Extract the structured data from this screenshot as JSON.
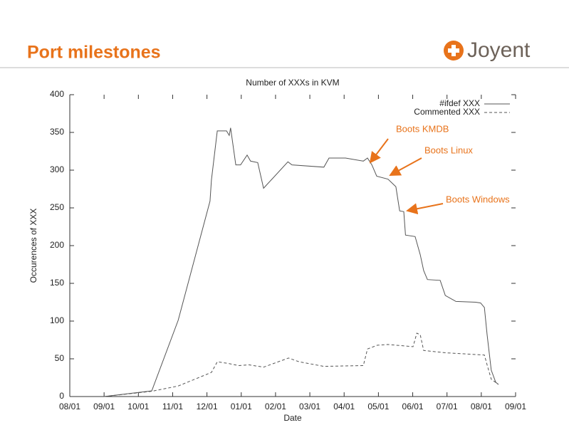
{
  "slide": {
    "title": "Port milestones",
    "logo": "Joyent"
  },
  "chart_data": {
    "type": "line",
    "title": "Number of XXXs in KVM",
    "x_label": "Date",
    "y_label": "Occurences of XXX",
    "xlim": [
      0,
      13
    ],
    "xticks": [
      {
        "value": 0,
        "label": "08/01"
      },
      {
        "value": 1,
        "label": "09/01"
      },
      {
        "value": 2,
        "label": "10/01"
      },
      {
        "value": 3,
        "label": "11/01"
      },
      {
        "value": 4,
        "label": "12/01"
      },
      {
        "value": 5,
        "label": "01/01"
      },
      {
        "value": 6,
        "label": "02/01"
      },
      {
        "value": 7,
        "label": "03/01"
      },
      {
        "value": 8,
        "label": "04/01"
      },
      {
        "value": 9,
        "label": "05/01"
      },
      {
        "value": 10,
        "label": "06/01"
      },
      {
        "value": 11,
        "label": "07/01"
      },
      {
        "value": 12,
        "label": "08/01"
      },
      {
        "value": 13,
        "label": "09/01"
      }
    ],
    "ylim": [
      0,
      400
    ],
    "yticks": [
      0,
      50,
      100,
      150,
      200,
      250,
      300,
      350,
      400
    ],
    "legend": "top-right",
    "series": [
      {
        "name": "#ifdef XXX",
        "color": "#555555",
        "dashed": false,
        "x": [
          1.0,
          2.39,
          3.16,
          4.09,
          4.13,
          4.3,
          4.57,
          4.65,
          4.69,
          4.84,
          4.98,
          5.17,
          5.27,
          5.48,
          5.65,
          6.36,
          6.48,
          7.41,
          7.56,
          8.04,
          8.56,
          8.68,
          8.81,
          8.95,
          9.28,
          9.51,
          9.62,
          9.74,
          9.79,
          10.07,
          10.22,
          10.32,
          10.43,
          10.8,
          10.95,
          11.26,
          11.84,
          11.98,
          12.09,
          12.17,
          12.29,
          12.42,
          12.5
        ],
        "values": [
          0,
          7.5,
          101,
          259,
          287,
          352,
          352,
          346,
          356,
          307,
          307,
          320,
          312,
          310,
          276,
          311,
          307,
          304,
          316,
          316,
          312,
          316,
          307,
          292,
          288,
          278,
          246,
          245,
          214,
          212,
          188,
          167,
          155,
          154,
          134,
          126,
          125,
          124,
          118,
          82,
          35,
          19,
          16
        ]
      },
      {
        "name": "Commented XXX",
        "color": "#555555",
        "dashed": true,
        "x": [
          1.0,
          2.39,
          3.16,
          4.13,
          4.3,
          4.61,
          4.92,
          5.23,
          5.65,
          6.38,
          6.69,
          7.41,
          8.56,
          8.68,
          8.97,
          9.28,
          10.01,
          10.12,
          10.22,
          10.32,
          10.95,
          12.09,
          12.17,
          12.29,
          12.5
        ],
        "values": [
          0,
          7,
          14,
          32,
          46,
          44,
          41,
          42,
          39,
          51,
          46,
          40,
          41,
          63,
          68,
          69,
          66,
          84,
          82,
          61,
          58,
          55,
          42,
          23,
          16
        ]
      }
    ],
    "annotations": [
      "Boots KMDB",
      "Boots Linux",
      "Boots Windows"
    ],
    "annotation_color": "#e8731b"
  }
}
